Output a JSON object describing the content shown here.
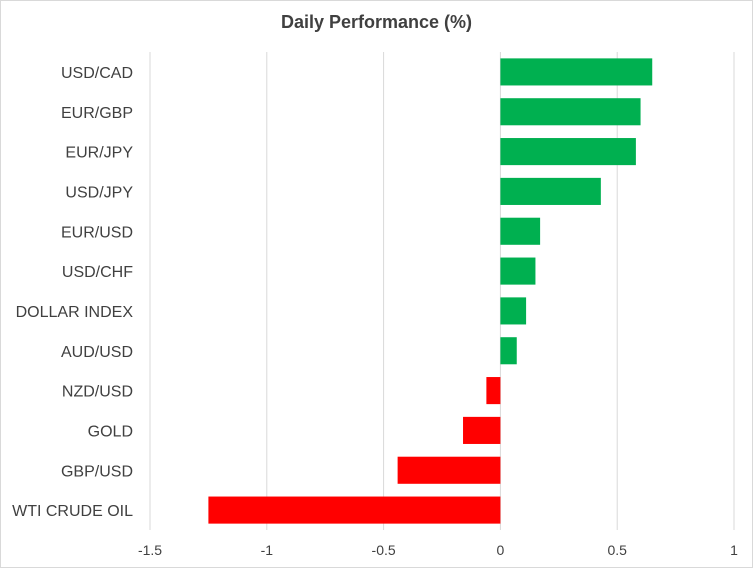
{
  "chart_data": {
    "type": "bar",
    "orientation": "horizontal",
    "title": "Daily Performance (%)",
    "categories": [
      "USD/CAD",
      "EUR/GBP",
      "EUR/JPY",
      "USD/JPY",
      "EUR/USD",
      "USD/CHF",
      "DOLLAR INDEX",
      "AUD/USD",
      "NZD/USD",
      "GOLD",
      "GBP/USD",
      "WTI CRUDE OIL"
    ],
    "values": [
      0.65,
      0.6,
      0.58,
      0.43,
      0.17,
      0.15,
      0.11,
      0.07,
      -0.06,
      -0.16,
      -0.44,
      -1.25
    ],
    "xlim": [
      -1.5,
      1
    ],
    "xticks": [
      "-1.5",
      "-1",
      "-0.5",
      "0",
      "0.5",
      "1"
    ],
    "xtick_values": [
      -1.5,
      -1,
      -0.5,
      0,
      0.5,
      1
    ],
    "grid": true,
    "colors": {
      "positive": "#00b050",
      "negative": "#ff0000",
      "grid": "#d9d9d9",
      "text": "#404040"
    }
  }
}
